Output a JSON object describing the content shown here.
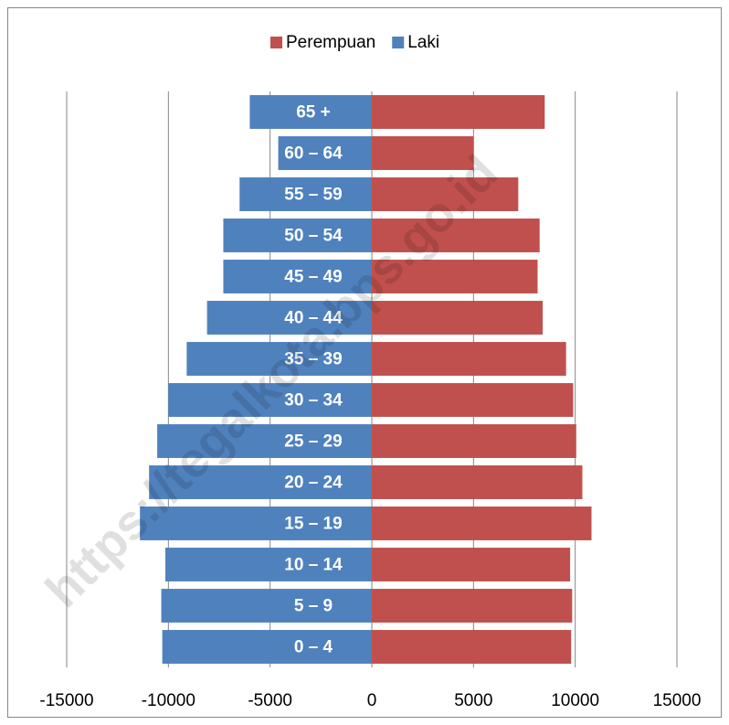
{
  "chart_data": {
    "type": "bar",
    "orientation": "horizontal",
    "categories": [
      "0 – 4",
      "5 – 9",
      "10 – 14",
      "15 – 19",
      "20 – 24",
      "25 – 29",
      "30 – 34",
      "35 – 39",
      "40 – 44",
      "45 – 49",
      "50 – 54",
      "55 – 59",
      "60 – 64",
      "65 +"
    ],
    "series": [
      {
        "name": "Perempuan",
        "color": "#c0504d",
        "values": [
          9800,
          9850,
          9750,
          10800,
          10350,
          10050,
          9900,
          9550,
          8400,
          8150,
          8250,
          7200,
          5000,
          8500
        ]
      },
      {
        "name": "Laki",
        "color": "#4f81bd",
        "values": [
          -10300,
          -10350,
          -10150,
          -11400,
          -10950,
          -10550,
          -10000,
          -9100,
          -8100,
          -7300,
          -7300,
          -6500,
          -4600,
          -6000
        ]
      }
    ],
    "xlim": [
      -15000,
      15000
    ],
    "xticks": [
      -15000,
      -10000,
      -5000,
      0,
      5000,
      10000,
      15000
    ],
    "grid": true,
    "legend": "top",
    "watermark": "https://tegalkota.bps.go.id"
  }
}
